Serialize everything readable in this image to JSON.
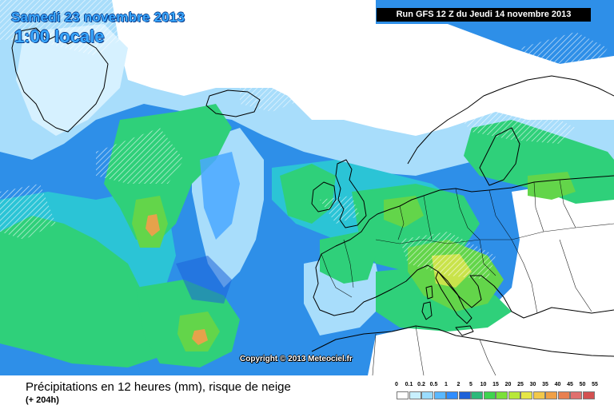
{
  "header": {
    "date": "Samedi 23 novembre 2013",
    "local_time": "1:00 locale",
    "run": "Run GFS 12 Z du Jeudi 14 novembre 2013"
  },
  "copyright": "Copyright © 2013 Meteociel.fr",
  "footer": {
    "title": "Précipitations en 12 heures (mm), risque de neige",
    "forecast_offset": "(+ 204h)"
  },
  "legend": {
    "ticks": [
      "0",
      "0.1",
      "0.2",
      "0.5",
      "1",
      "2",
      "5",
      "10",
      "15",
      "20",
      "25",
      "30",
      "35",
      "40",
      "45",
      "50",
      "55"
    ],
    "colors": [
      "#ffffff",
      "#c8f0ff",
      "#9adcff",
      "#5ab8ff",
      "#2f8dff",
      "#1e62d8",
      "#2db97a",
      "#3fd44f",
      "#7be03a",
      "#b8e83a",
      "#e6e646",
      "#f2c84a",
      "#f0a046",
      "#e88050",
      "#e0706e",
      "#d35050"
    ]
  },
  "map": {
    "colors": {
      "ocean_base": "#2e8fe8",
      "light": "#a8ddfb",
      "pale": "#d6f1ff",
      "mid": "#4aa8ff",
      "cyan": "#2bc4d6",
      "green": "#2fd07a",
      "green2": "#63d54a",
      "yellow": "#c9e34b",
      "orange": "#e6a24b",
      "coast": "#000000"
    }
  }
}
